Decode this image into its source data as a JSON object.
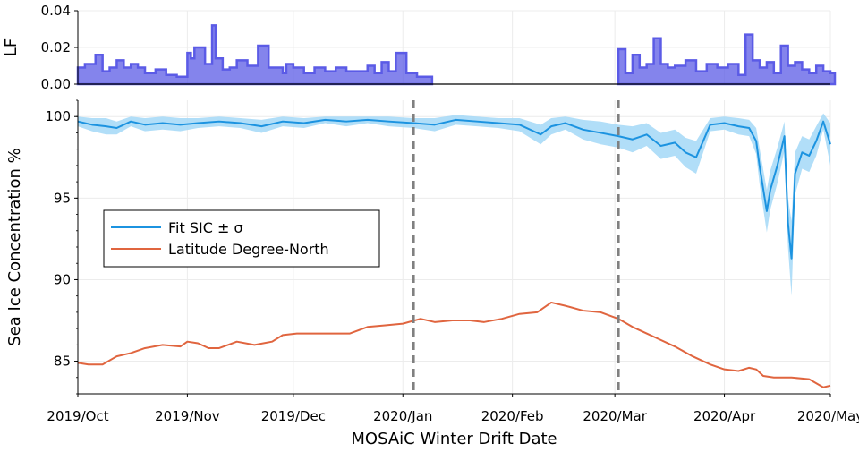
{
  "chart_data": [
    {
      "panel": "top",
      "type": "area",
      "ylabel": "LF",
      "ylim": [
        0,
        0.04
      ],
      "yticks": [
        0.0,
        0.02,
        0.04
      ],
      "ytick_labels": [
        "0.00",
        "0.02",
        "0.04"
      ],
      "grid": true,
      "color": "#5b5be6",
      "note_gap": [
        "2020-01-09",
        "2020-03-02"
      ],
      "series": [
        {
          "x": [
            "2019-10-01",
            "2019-10-03",
            "2019-10-06",
            "2019-10-08",
            "2019-10-10",
            "2019-10-12",
            "2019-10-14",
            "2019-10-16",
            "2019-10-18",
            "2019-10-20",
            "2019-10-23",
            "2019-10-26",
            "2019-10-29",
            "2019-11-01",
            "2019-11-02",
            "2019-11-03",
            "2019-11-04",
            "2019-11-06",
            "2019-11-08",
            "2019-11-09",
            "2019-11-11",
            "2019-11-13",
            "2019-11-15",
            "2019-11-18",
            "2019-11-21",
            "2019-11-24",
            "2019-11-26",
            "2019-11-28",
            "2019-11-29",
            "2019-12-01",
            "2019-12-04",
            "2019-12-07",
            "2019-12-10",
            "2019-12-13",
            "2019-12-16",
            "2019-12-19",
            "2019-12-22",
            "2019-12-24",
            "2019-12-26",
            "2019-12-28",
            "2019-12-30",
            "2020-01-02",
            "2020-01-05",
            "2020-01-08"
          ],
          "values": [
            0.009,
            0.011,
            0.016,
            0.007,
            0.009,
            0.013,
            0.009,
            0.011,
            0.009,
            0.006,
            0.008,
            0.005,
            0.004,
            0.017,
            0.014,
            0.02,
            0.02,
            0.011,
            0.032,
            0.014,
            0.008,
            0.009,
            0.013,
            0.01,
            0.021,
            0.009,
            0.009,
            0.006,
            0.011,
            0.009,
            0.006,
            0.009,
            0.007,
            0.009,
            0.007,
            0.007,
            0.01,
            0.006,
            0.012,
            0.007,
            0.017,
            0.006,
            0.004,
            0.004
          ]
        },
        {
          "x": [
            "2020-03-02",
            "2020-03-04",
            "2020-03-06",
            "2020-03-08",
            "2020-03-10",
            "2020-03-12",
            "2020-03-14",
            "2020-03-16",
            "2020-03-18",
            "2020-03-21",
            "2020-03-24",
            "2020-03-27",
            "2020-03-30",
            "2020-04-02",
            "2020-04-05",
            "2020-04-07",
            "2020-04-09",
            "2020-04-11",
            "2020-04-13",
            "2020-04-15",
            "2020-04-17",
            "2020-04-19",
            "2020-04-21",
            "2020-04-23",
            "2020-04-25",
            "2020-04-27",
            "2020-04-29",
            "2020-05-01"
          ],
          "values": [
            0.019,
            0.006,
            0.016,
            0.009,
            0.011,
            0.025,
            0.011,
            0.009,
            0.01,
            0.013,
            0.007,
            0.011,
            0.009,
            0.011,
            0.005,
            0.027,
            0.013,
            0.009,
            0.012,
            0.006,
            0.021,
            0.01,
            0.012,
            0.008,
            0.006,
            0.01,
            0.007,
            0.006
          ]
        }
      ]
    },
    {
      "panel": "main",
      "type": "line",
      "xlabel": "MOSAiC Winter Drift Date",
      "ylabel": "Sea Ice Concentration %",
      "ylim": [
        83,
        101
      ],
      "yticks": [
        85,
        90,
        95,
        100
      ],
      "ytick_labels": [
        "85",
        "90",
        "95",
        "100"
      ],
      "xtick_labels": [
        "2019/Oct",
        "2019/Nov",
        "2019/Dec",
        "2020/Jan",
        "2020/Feb",
        "2020/Mar",
        "2020/Apr",
        "2020/May"
      ],
      "xtick_dates": [
        "2019-10-01",
        "2019-11-01",
        "2019-12-01",
        "2020-01-01",
        "2020-02-01",
        "2020-03-01",
        "2020-04-01",
        "2020-05-01"
      ],
      "grid": true,
      "legend_position": "middle-left",
      "vlines": [
        "2020-01-04",
        "2020-03-02"
      ],
      "series": [
        {
          "name": "Fit SIC ± σ",
          "color": "#1c93e0",
          "band_color": "#a8daf7",
          "x": [
            "2019-10-01",
            "2019-10-05",
            "2019-10-09",
            "2019-10-12",
            "2019-10-16",
            "2019-10-20",
            "2019-10-25",
            "2019-10-30",
            "2019-11-04",
            "2019-11-10",
            "2019-11-16",
            "2019-11-22",
            "2019-11-28",
            "2019-12-04",
            "2019-12-10",
            "2019-12-16",
            "2019-12-22",
            "2019-12-28",
            "2020-01-04",
            "2020-01-10",
            "2020-01-16",
            "2020-01-22",
            "2020-01-28",
            "2020-02-03",
            "2020-02-09",
            "2020-02-12",
            "2020-02-16",
            "2020-02-21",
            "2020-02-26",
            "2020-03-02",
            "2020-03-06",
            "2020-03-10",
            "2020-03-14",
            "2020-03-18",
            "2020-03-21",
            "2020-03-24",
            "2020-03-28",
            "2020-04-01",
            "2020-04-05",
            "2020-04-08",
            "2020-04-10",
            "2020-04-11",
            "2020-04-13",
            "2020-04-14",
            "2020-04-16",
            "2020-04-18",
            "2020-04-19",
            "2020-04-20",
            "2020-04-21",
            "2020-04-23",
            "2020-04-25",
            "2020-04-27",
            "2020-04-29",
            "2020-05-01"
          ],
          "values": [
            99.7,
            99.5,
            99.4,
            99.3,
            99.7,
            99.5,
            99.6,
            99.5,
            99.6,
            99.7,
            99.6,
            99.4,
            99.7,
            99.6,
            99.8,
            99.7,
            99.8,
            99.7,
            99.6,
            99.5,
            99.8,
            99.7,
            99.6,
            99.5,
            98.9,
            99.4,
            99.6,
            99.2,
            99.0,
            98.8,
            98.6,
            98.9,
            98.2,
            98.4,
            97.8,
            97.5,
            99.5,
            99.6,
            99.4,
            99.3,
            98.5,
            96.9,
            94.2,
            95.5,
            97.0,
            98.8,
            93.5,
            91.3,
            96.5,
            97.8,
            97.6,
            98.5,
            99.7,
            98.3
          ],
          "sigma": [
            0.3,
            0.4,
            0.5,
            0.4,
            0.3,
            0.4,
            0.4,
            0.4,
            0.3,
            0.3,
            0.3,
            0.4,
            0.3,
            0.3,
            0.2,
            0.3,
            0.2,
            0.3,
            0.3,
            0.4,
            0.3,
            0.3,
            0.3,
            0.4,
            0.6,
            0.5,
            0.4,
            0.6,
            0.7,
            0.7,
            0.8,
            0.7,
            0.8,
            0.8,
            0.9,
            1.0,
            0.4,
            0.4,
            0.5,
            0.5,
            0.8,
            1.1,
            1.3,
            1.2,
            1.1,
            0.9,
            1.5,
            2.3,
            1.3,
            1.0,
            1.0,
            0.9,
            0.5,
            1.3
          ]
        },
        {
          "name": "Latitude Degree-North",
          "color": "#e0653f",
          "x": [
            "2019-10-01",
            "2019-10-04",
            "2019-10-08",
            "2019-10-12",
            "2019-10-16",
            "2019-10-20",
            "2019-10-25",
            "2019-10-30",
            "2019-11-01",
            "2019-11-04",
            "2019-11-07",
            "2019-11-10",
            "2019-11-15",
            "2019-11-20",
            "2019-11-25",
            "2019-11-28",
            "2019-12-02",
            "2019-12-07",
            "2019-12-12",
            "2019-12-17",
            "2019-12-22",
            "2019-12-27",
            "2020-01-01",
            "2020-01-06",
            "2020-01-10",
            "2020-01-15",
            "2020-01-20",
            "2020-01-24",
            "2020-01-29",
            "2020-02-03",
            "2020-02-08",
            "2020-02-12",
            "2020-02-16",
            "2020-02-21",
            "2020-02-26",
            "2020-03-02",
            "2020-03-06",
            "2020-03-10",
            "2020-03-14",
            "2020-03-18",
            "2020-03-23",
            "2020-03-28",
            "2020-04-01",
            "2020-04-05",
            "2020-04-08",
            "2020-04-10",
            "2020-04-12",
            "2020-04-15",
            "2020-04-20",
            "2020-04-25",
            "2020-04-29",
            "2020-05-01"
          ],
          "values": [
            84.9,
            84.8,
            84.8,
            85.3,
            85.5,
            85.8,
            86.0,
            85.9,
            86.2,
            86.1,
            85.8,
            85.8,
            86.2,
            86.0,
            86.2,
            86.6,
            86.7,
            86.7,
            86.7,
            86.7,
            87.1,
            87.2,
            87.3,
            87.6,
            87.4,
            87.5,
            87.5,
            87.4,
            87.6,
            87.9,
            88.0,
            88.6,
            88.4,
            88.1,
            88.0,
            87.6,
            87.1,
            86.7,
            86.3,
            85.9,
            85.3,
            84.8,
            84.5,
            84.4,
            84.6,
            84.5,
            84.1,
            84.0,
            84.0,
            83.9,
            83.4,
            83.5
          ]
        }
      ]
    }
  ]
}
